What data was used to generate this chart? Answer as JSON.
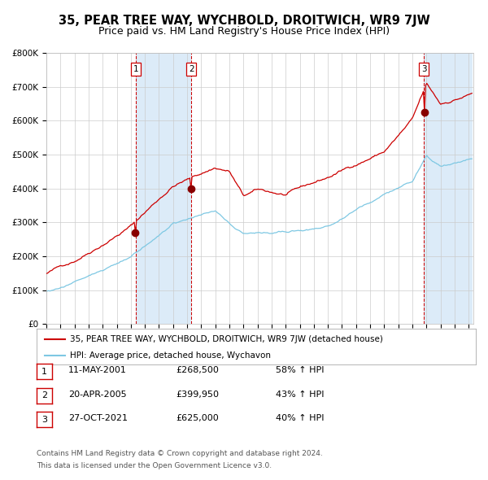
{
  "title": "35, PEAR TREE WAY, WYCHBOLD, DROITWICH, WR9 7JW",
  "subtitle": "Price paid vs. HM Land Registry's House Price Index (HPI)",
  "ylim": [
    0,
    800000
  ],
  "yticks": [
    0,
    100000,
    200000,
    300000,
    400000,
    500000,
    600000,
    700000,
    800000
  ],
  "ytick_labels": [
    "£0",
    "£100K",
    "£200K",
    "£300K",
    "£400K",
    "£500K",
    "£600K",
    "£700K",
    "£800K"
  ],
  "hpi_color": "#7ec8e3",
  "price_color": "#cc0000",
  "sale_marker_color": "#880000",
  "dashed_line_color": "#cc0000",
  "shade_color": "#d6e8f7",
  "grid_color": "#cccccc",
  "bg_color": "#ffffff",
  "sale_dates": [
    "2001-05-11",
    "2005-04-20",
    "2021-10-27"
  ],
  "sale_prices": [
    268500,
    399950,
    625000
  ],
  "sale_labels": [
    "1",
    "2",
    "3"
  ],
  "legend_line1": "35, PEAR TREE WAY, WYCHBOLD, DROITWICH, WR9 7JW (detached house)",
  "legend_line2": "HPI: Average price, detached house, Wychavon",
  "table_entries": [
    {
      "num": "1",
      "date": "11-MAY-2001",
      "price": "£268,500",
      "change": "58% ↑ HPI"
    },
    {
      "num": "2",
      "date": "20-APR-2005",
      "price": "£399,950",
      "change": "43% ↑ HPI"
    },
    {
      "num": "3",
      "date": "27-OCT-2021",
      "price": "£625,000",
      "change": "40% ↑ HPI"
    }
  ],
  "footer_line1": "Contains HM Land Registry data © Crown copyright and database right 2024.",
  "footer_line2": "This data is licensed under the Open Government Licence v3.0."
}
